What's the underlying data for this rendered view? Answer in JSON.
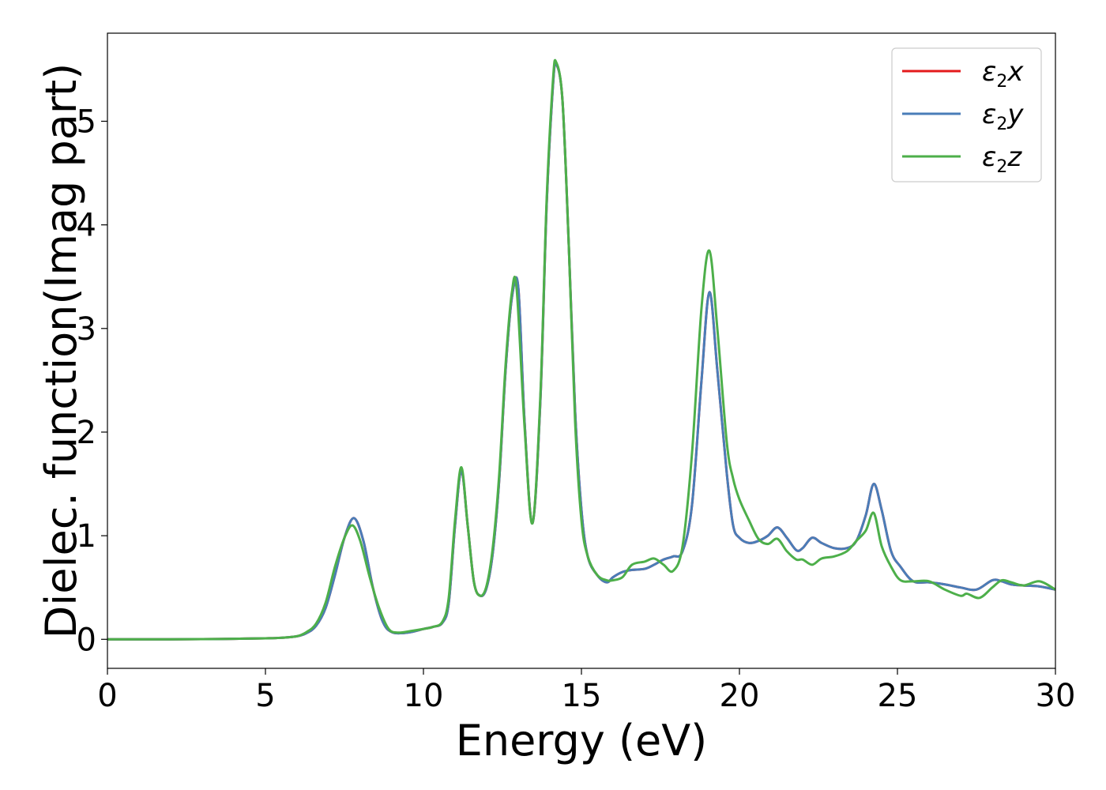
{
  "chart_data": {
    "type": "line",
    "xlabel": "Energy (eV)",
    "ylabel": "Dielec. function(Imag part)",
    "xlim": [
      0,
      30
    ],
    "ylim": [
      -0.28,
      5.85
    ],
    "xticks": [
      0,
      5,
      10,
      15,
      20,
      25,
      30
    ],
    "yticks": [
      0,
      1,
      2,
      3,
      4,
      5
    ],
    "grid": false,
    "legend_position": "top-right",
    "series": [
      {
        "name": "ε2x",
        "label_main": "ε",
        "label_sub": "2",
        "label_var": "x",
        "color": "#e41a1c",
        "x": [
          0,
          1,
          2,
          3,
          4,
          5,
          5.5,
          6,
          6.3,
          6.6,
          6.9,
          7.2,
          7.5,
          7.8,
          8.1,
          8.4,
          8.7,
          9.0,
          9.5,
          10.0,
          10.3,
          10.6,
          10.8,
          11.0,
          11.2,
          11.4,
          11.6,
          11.8,
          12.0,
          12.2,
          12.4,
          12.6,
          12.8,
          13.0,
          13.2,
          13.45,
          13.7,
          13.9,
          14.1,
          14.2,
          14.4,
          14.6,
          14.8,
          15.0,
          15.2,
          15.5,
          15.8,
          16.0,
          16.3,
          16.6,
          17.0,
          17.3,
          17.6,
          17.9,
          18.2,
          18.5,
          18.8,
          19.05,
          19.3,
          19.6,
          19.8,
          20.0,
          20.3,
          20.6,
          20.9,
          21.2,
          21.5,
          21.8,
          22.0,
          22.3,
          22.6,
          23.0,
          23.4,
          23.7,
          24.0,
          24.25,
          24.5,
          24.8,
          25.1,
          25.5,
          26.0,
          26.5,
          27.0,
          27.5,
          28.0,
          28.3,
          28.6,
          29.0,
          29.5,
          30.0
        ],
        "values": [
          0,
          0,
          0,
          0.002,
          0.005,
          0.01,
          0.015,
          0.03,
          0.06,
          0.13,
          0.3,
          0.62,
          0.98,
          1.17,
          0.95,
          0.5,
          0.18,
          0.07,
          0.065,
          0.1,
          0.12,
          0.16,
          0.35,
          1.1,
          1.63,
          1.1,
          0.55,
          0.42,
          0.5,
          0.85,
          1.55,
          2.6,
          3.3,
          3.4,
          2.1,
          1.12,
          2.3,
          4.2,
          5.35,
          5.55,
          5.2,
          3.8,
          2.2,
          1.25,
          0.8,
          0.62,
          0.55,
          0.6,
          0.65,
          0.67,
          0.68,
          0.72,
          0.77,
          0.8,
          0.85,
          1.3,
          2.5,
          3.35,
          2.6,
          1.6,
          1.1,
          0.98,
          0.93,
          0.95,
          1.0,
          1.08,
          0.98,
          0.86,
          0.88,
          0.98,
          0.93,
          0.88,
          0.88,
          0.95,
          1.2,
          1.5,
          1.25,
          0.85,
          0.7,
          0.56,
          0.55,
          0.53,
          0.5,
          0.48,
          0.57,
          0.56,
          0.53,
          0.52,
          0.51,
          0.48
        ]
      },
      {
        "name": "ε2y",
        "label_main": "ε",
        "label_sub": "2",
        "label_var": "y",
        "color": "#4a7db8",
        "x": [
          0,
          1,
          2,
          3,
          4,
          5,
          5.5,
          6,
          6.3,
          6.6,
          6.9,
          7.2,
          7.5,
          7.8,
          8.1,
          8.4,
          8.7,
          9.0,
          9.5,
          10.0,
          10.3,
          10.6,
          10.8,
          11.0,
          11.2,
          11.4,
          11.6,
          11.8,
          12.0,
          12.2,
          12.4,
          12.6,
          12.8,
          13.0,
          13.2,
          13.45,
          13.7,
          13.9,
          14.1,
          14.2,
          14.4,
          14.6,
          14.8,
          15.0,
          15.2,
          15.5,
          15.8,
          16.0,
          16.3,
          16.6,
          17.0,
          17.3,
          17.6,
          17.9,
          18.2,
          18.5,
          18.8,
          19.05,
          19.3,
          19.6,
          19.8,
          20.0,
          20.3,
          20.6,
          20.9,
          21.2,
          21.5,
          21.8,
          22.0,
          22.3,
          22.6,
          23.0,
          23.4,
          23.7,
          24.0,
          24.25,
          24.5,
          24.8,
          25.1,
          25.5,
          26.0,
          26.5,
          27.0,
          27.5,
          28.0,
          28.3,
          28.6,
          29.0,
          29.5,
          30.0
        ],
        "values": [
          0,
          0,
          0,
          0.002,
          0.005,
          0.01,
          0.015,
          0.03,
          0.06,
          0.13,
          0.3,
          0.62,
          0.98,
          1.17,
          0.95,
          0.5,
          0.18,
          0.07,
          0.065,
          0.1,
          0.12,
          0.16,
          0.35,
          1.1,
          1.63,
          1.1,
          0.55,
          0.42,
          0.5,
          0.85,
          1.55,
          2.6,
          3.3,
          3.4,
          2.1,
          1.12,
          2.3,
          4.2,
          5.35,
          5.55,
          5.2,
          3.8,
          2.2,
          1.25,
          0.8,
          0.62,
          0.55,
          0.6,
          0.65,
          0.67,
          0.68,
          0.72,
          0.77,
          0.8,
          0.85,
          1.3,
          2.5,
          3.35,
          2.6,
          1.6,
          1.1,
          0.98,
          0.93,
          0.95,
          1.0,
          1.08,
          0.98,
          0.86,
          0.88,
          0.98,
          0.93,
          0.88,
          0.88,
          0.95,
          1.2,
          1.5,
          1.25,
          0.85,
          0.7,
          0.56,
          0.55,
          0.53,
          0.5,
          0.48,
          0.57,
          0.56,
          0.53,
          0.52,
          0.51,
          0.48
        ]
      },
      {
        "name": "ε2z",
        "label_main": "ε",
        "label_sub": "2",
        "label_var": "z",
        "color": "#4daf4a",
        "x": [
          0,
          1,
          2,
          3,
          4,
          5,
          5.5,
          6,
          6.3,
          6.6,
          6.9,
          7.2,
          7.5,
          7.75,
          8.0,
          8.3,
          8.6,
          8.9,
          9.2,
          9.6,
          10.0,
          10.3,
          10.6,
          10.8,
          11.0,
          11.2,
          11.4,
          11.6,
          11.8,
          12.0,
          12.2,
          12.4,
          12.6,
          12.8,
          12.95,
          13.2,
          13.45,
          13.7,
          13.9,
          14.1,
          14.2,
          14.4,
          14.6,
          14.8,
          15.0,
          15.2,
          15.5,
          15.8,
          16.0,
          16.3,
          16.6,
          17.0,
          17.3,
          17.6,
          17.9,
          18.2,
          18.5,
          18.8,
          19.05,
          19.3,
          19.6,
          19.8,
          20.0,
          20.3,
          20.6,
          20.9,
          21.2,
          21.5,
          21.8,
          22.0,
          22.3,
          22.6,
          23.0,
          23.4,
          23.7,
          24.0,
          24.25,
          24.5,
          24.8,
          25.1,
          25.5,
          26.0,
          26.5,
          27.0,
          27.2,
          27.6,
          28.0,
          28.3,
          28.6,
          29.0,
          29.5,
          30.0
        ],
        "values": [
          0,
          0,
          0,
          0.002,
          0.005,
          0.01,
          0.015,
          0.03,
          0.07,
          0.15,
          0.35,
          0.7,
          0.98,
          1.1,
          0.95,
          0.6,
          0.3,
          0.1,
          0.065,
          0.08,
          0.1,
          0.12,
          0.17,
          0.4,
          1.15,
          1.66,
          1.1,
          0.55,
          0.42,
          0.52,
          0.9,
          1.6,
          2.65,
          3.35,
          3.38,
          2.05,
          1.12,
          2.35,
          4.25,
          5.4,
          5.57,
          5.2,
          3.8,
          2.1,
          1.15,
          0.8,
          0.62,
          0.57,
          0.57,
          0.6,
          0.72,
          0.75,
          0.78,
          0.72,
          0.66,
          0.9,
          1.8,
          3.2,
          3.75,
          3.0,
          1.9,
          1.55,
          1.35,
          1.15,
          0.97,
          0.92,
          0.97,
          0.85,
          0.77,
          0.77,
          0.72,
          0.78,
          0.8,
          0.85,
          0.95,
          1.05,
          1.22,
          0.9,
          0.7,
          0.57,
          0.56,
          0.56,
          0.48,
          0.42,
          0.44,
          0.4,
          0.5,
          0.57,
          0.55,
          0.52,
          0.56,
          0.48
        ]
      }
    ]
  }
}
